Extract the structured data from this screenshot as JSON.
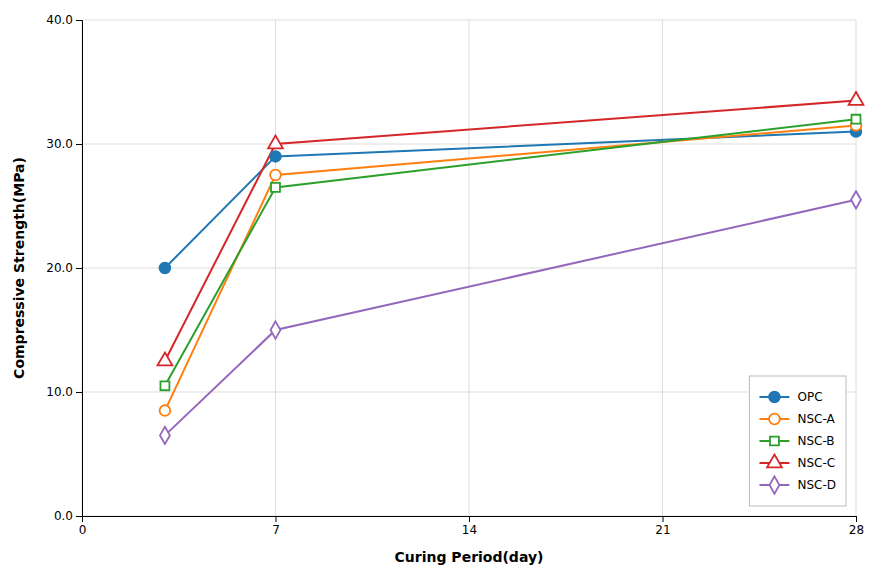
{
  "chart_data": {
    "type": "line",
    "x": [
      3,
      7,
      28
    ],
    "series": [
      {
        "name": "OPC",
        "values": [
          20.0,
          29.0,
          31.0
        ],
        "marker": "filled-circle"
      },
      {
        "name": "NSC-A",
        "values": [
          8.5,
          27.5,
          31.5
        ],
        "marker": "circle"
      },
      {
        "name": "NSC-B",
        "values": [
          10.5,
          26.5,
          32.0
        ],
        "marker": "square"
      },
      {
        "name": "NSC-C",
        "values": [
          12.5,
          30.0,
          33.5
        ],
        "marker": "triangle-up"
      },
      {
        "name": "NSC-D",
        "values": [
          6.5,
          15.0,
          25.5
        ],
        "marker": "thin-diamond"
      }
    ],
    "xlabel": "Curing Period(day)",
    "ylabel": "Compressive Strength(MPa)",
    "xlim": [
      0,
      28
    ],
    "ylim": [
      0.0,
      40.0
    ],
    "xticks": [
      0,
      7,
      14,
      21,
      28
    ],
    "yticks": [
      {
        "value": 0.0,
        "label": "0.0"
      },
      {
        "value": 10.0,
        "label": "10.0"
      },
      {
        "value": 20.0,
        "label": "20.0"
      },
      {
        "value": 30.0,
        "label": "30.0"
      },
      {
        "value": 40.0,
        "label": "40.0"
      }
    ],
    "grid": true,
    "legend": "lower right"
  }
}
